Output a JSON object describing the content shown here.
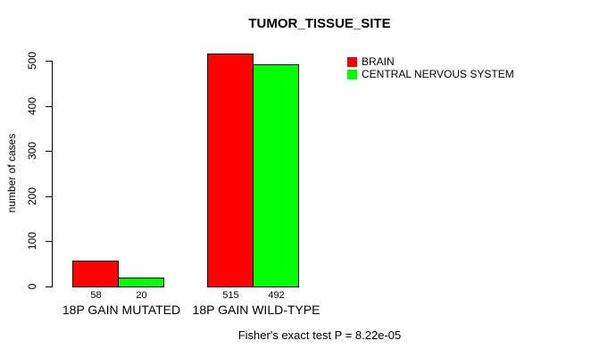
{
  "chart_data": {
    "type": "bar",
    "title": "TUMOR_TISSUE_SITE",
    "categories": [
      "18P GAIN MUTATED",
      "18P GAIN WILD-TYPE"
    ],
    "series": [
      {
        "name": "BRAIN",
        "color": "#ff0000",
        "values": [
          58,
          515
        ]
      },
      {
        "name": "CENTRAL NERVOUS SYSTEM",
        "color": "#00ff00",
        "values": [
          20,
          492
        ]
      }
    ],
    "xlabel": "",
    "ylabel": "number of cases",
    "ylim": [
      0,
      500
    ],
    "yticks": [
      0,
      100,
      200,
      300,
      400,
      500
    ],
    "bar_value_labels": [
      [
        58,
        515
      ],
      [
        20,
        492
      ]
    ],
    "grid": false,
    "legend_position": "top-right",
    "annotation": "Fisher's exact test P = 8.22e-05"
  },
  "colors": {
    "background": "#ffffff",
    "axis": "#000000",
    "text": "#000000",
    "brain": "#ff0000",
    "central_nervous_system": "#00ff00"
  }
}
